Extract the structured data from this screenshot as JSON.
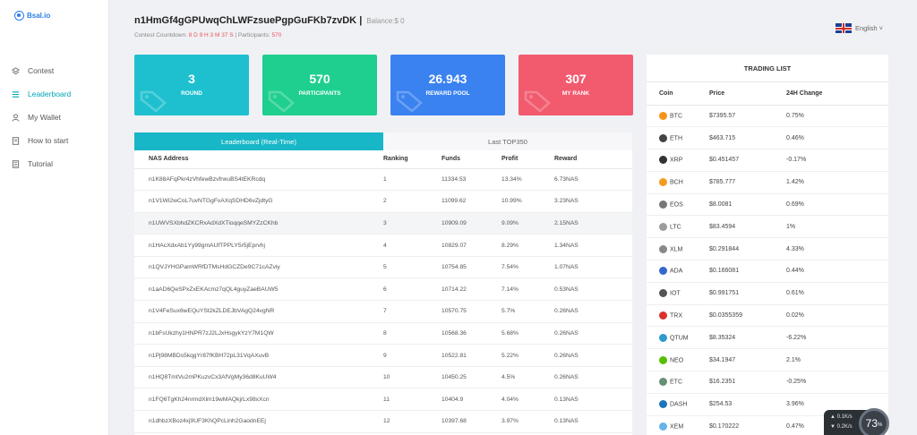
{
  "brand": {
    "name": "Bsal.io"
  },
  "sidebar": {
    "items": [
      {
        "label": "Contest",
        "icon": "layers-icon",
        "active": false
      },
      {
        "label": "Leaderboard",
        "icon": "list-icon",
        "active": true
      },
      {
        "label": "My Wallet",
        "icon": "user-icon",
        "active": false
      },
      {
        "label": "How to start",
        "icon": "doc-icon",
        "active": false
      },
      {
        "label": "Tutorial",
        "icon": "doc-list-icon",
        "active": false
      }
    ]
  },
  "header": {
    "address": "n1HmGf4gGPUwqChLWFzsuePgpGuFKb7zvDK",
    "separator": "|",
    "balance": "Balance:$ 0",
    "countdown_label": "Contest Countdown:",
    "countdown_value": "8 D 9 H 3 M 37 S",
    "participants_label": "| Participants:",
    "participants_value": "570",
    "language": "English ˅"
  },
  "cards": [
    {
      "value": "3",
      "label": "ROUND",
      "color": "#1ec0cf"
    },
    {
      "value": "570",
      "label": "PARTICIPANTS",
      "color": "#1fcf8f"
    },
    {
      "value": "26.943",
      "label": "REWARD POOL",
      "color": "#3a82f0"
    },
    {
      "value": "307",
      "label": "MY RANK",
      "color": "#f25a6e"
    }
  ],
  "leaderboard": {
    "tabs": [
      "Leaderboard (Real-Time)",
      "Last TOP350"
    ],
    "columns": [
      "NAS Address",
      "Ranking",
      "Funds",
      "Profit",
      "Reward"
    ],
    "rows": [
      [
        "n1K88AFqPkr4zVhfewBzvfrwuBS4tEKRcdq",
        "1",
        "11334.53",
        "13.34%",
        "6.73NAS"
      ],
      [
        "n1V1Wi2wCoL7uvNTGgFvAXqSDHD6vZjdtyG",
        "2",
        "11099.62",
        "10.99%",
        "3.23NAS"
      ],
      [
        "n1UWVSXbhdZKCRxAdXdXTioqqeSMYZzCKhb",
        "3",
        "10909.09",
        "9.09%",
        "2.15NAS"
      ],
      [
        "n1HAcXdxAb1Yy99gmAUfTPPLY5r5jEprvhj",
        "4",
        "10829.07",
        "8.29%",
        "1.34NAS"
      ],
      [
        "n1QVJYHGPamWRfDTMsHdGCZDe9C71cAZviy",
        "5",
        "10754.85",
        "7.54%",
        "1.07NAS"
      ],
      [
        "n1aAD6QeSPxZxEKAcmz7qQL4guyZaeBAUW5",
        "6",
        "10714.22",
        "7.14%",
        "0.53NAS"
      ],
      [
        "n1V4FeSux6wEQuYSt2kZLDEJbVAgQ24vgNR",
        "7",
        "10570.75",
        "5.7%",
        "0.26NAS"
      ],
      [
        "n1bFsUkzhy1HNPR7zJ2LJxHsgykYzY7M1QW",
        "8",
        "10568.36",
        "5.68%",
        "0.26NAS"
      ],
      [
        "n1Pj98MBDs5kqgYr87fKBH72pL31VqAXuvB",
        "9",
        "10522.81",
        "5.22%",
        "0.26NAS"
      ],
      [
        "n1HQ8TmtVu2mPKuzvCx3AfVgMy36d8KuUW4",
        "10",
        "10450.25",
        "4.5%",
        "0.26NAS"
      ],
      [
        "n1FQ6TgKh24nrmdXlm19wMAQkjrLx98xXcn",
        "11",
        "10404.9",
        "4.04%",
        "0.13NAS"
      ],
      [
        "n1dhbzXBoz4xj9UF3KhQPcLinh2GaodnEEj",
        "12",
        "10397.68",
        "3.97%",
        "0.13NAS"
      ]
    ]
  },
  "trading": {
    "title": "TRADING LIST",
    "columns": [
      "Coin",
      "Price",
      "24H Change"
    ],
    "rows": [
      {
        "coin": "BTC",
        "price": "$7395.57",
        "change": "0.75%",
        "dir": "pos",
        "color": "#f7931a"
      },
      {
        "coin": "ETH",
        "price": "$463.715",
        "change": "0.46%",
        "dir": "pos",
        "color": "#444444"
      },
      {
        "coin": "XRP",
        "price": "$0.451457",
        "change": "-0.17%",
        "dir": "neg",
        "color": "#333333"
      },
      {
        "coin": "BCH",
        "price": "$785.777",
        "change": "1.42%",
        "dir": "pos",
        "color": "#f29b1d"
      },
      {
        "coin": "EOS",
        "price": "$8.0081",
        "change": "0.69%",
        "dir": "pos",
        "color": "#777777"
      },
      {
        "coin": "LTC",
        "price": "$83.4594",
        "change": "1%",
        "dir": "pos",
        "color": "#9c9c9c"
      },
      {
        "coin": "XLM",
        "price": "$0.291844",
        "change": "4.33%",
        "dir": "pos",
        "color": "#888888"
      },
      {
        "coin": "ADA",
        "price": "$0.166081",
        "change": "0.44%",
        "dir": "pos",
        "color": "#3468d1"
      },
      {
        "coin": "IOT",
        "price": "$0.991751",
        "change": "0.61%",
        "dir": "pos",
        "color": "#555555"
      },
      {
        "coin": "TRX",
        "price": "$0.0355359",
        "change": "0.02%",
        "dir": "pos",
        "color": "#d9312b"
      },
      {
        "coin": "QTUM",
        "price": "$8.35324",
        "change": "-6.22%",
        "dir": "neg",
        "color": "#2e9ad0"
      },
      {
        "coin": "NEO",
        "price": "$34.1947",
        "change": "2.1%",
        "dir": "pos",
        "color": "#58bf00"
      },
      {
        "coin": "ETC",
        "price": "$16.2351",
        "change": "-0.25%",
        "dir": "neg",
        "color": "#669073"
      },
      {
        "coin": "DASH",
        "price": "$254.53",
        "change": "3.96%",
        "dir": "pos",
        "color": "#1c75bc"
      },
      {
        "coin": "XEM",
        "price": "$0.170222",
        "change": "0.47%",
        "dir": "pos",
        "color": "#67b2e8"
      }
    ]
  },
  "widget": {
    "up": "0.1K/s",
    "down": "0.2K/s",
    "percent": "73",
    "unit": "%"
  }
}
